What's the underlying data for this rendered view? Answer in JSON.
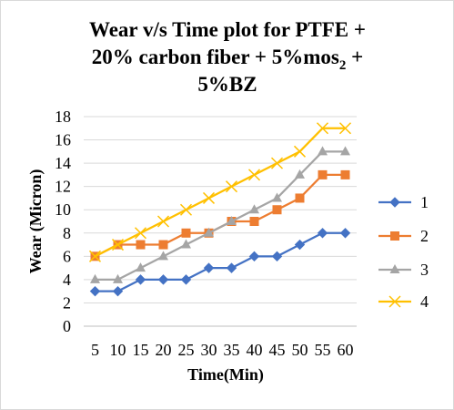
{
  "chart_data": {
    "type": "line",
    "title": {
      "line1": "Wear  v/s Time plot for PTFE +",
      "line2_pre": "20% carbon fiber + 5%mos",
      "line2_sub": "2",
      "line2_post": " +",
      "line3": "5%BZ"
    },
    "xlabel": "Time(Min)",
    "ylabel": "Wear (Micron)",
    "categories": [
      "5",
      "10",
      "15",
      "20",
      "25",
      "30",
      "35",
      "40",
      "45",
      "50",
      "55",
      "60"
    ],
    "ylim": [
      0,
      18
    ],
    "ytick_step": 2,
    "grid": "horizontal",
    "legend_position": "right",
    "series": [
      {
        "name": "1",
        "color": "#4472c4",
        "marker": "diamond",
        "values": [
          3,
          3,
          4,
          4,
          4,
          5,
          5,
          6,
          6,
          7,
          8,
          8
        ]
      },
      {
        "name": "2",
        "color": "#ed7d31",
        "marker": "square",
        "values": [
          6,
          7,
          7,
          7,
          8,
          8,
          9,
          9,
          10,
          11,
          13,
          13
        ]
      },
      {
        "name": "3",
        "color": "#a5a5a5",
        "marker": "triangle",
        "values": [
          4,
          4,
          5,
          6,
          7,
          8,
          9,
          10,
          11,
          13,
          15,
          15
        ]
      },
      {
        "name": "4",
        "color": "#ffc000",
        "marker": "x",
        "values": [
          6,
          7,
          8,
          9,
          10,
          11,
          12,
          13,
          14,
          15,
          17,
          17
        ]
      }
    ]
  }
}
